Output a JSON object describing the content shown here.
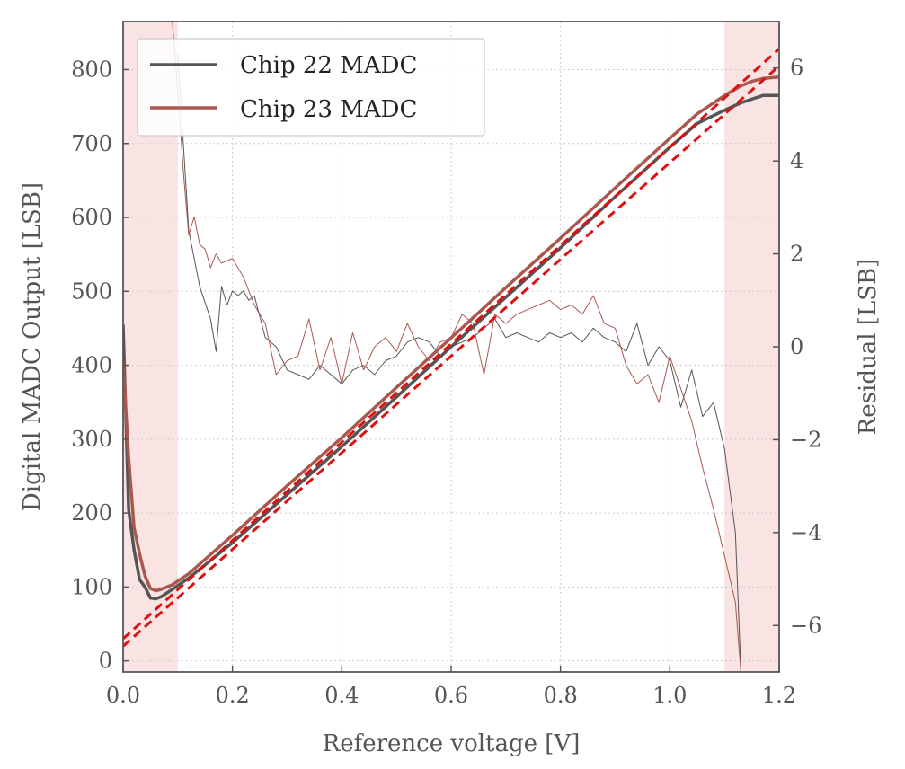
{
  "chart_data": {
    "type": "line",
    "xlabel": "Reference voltage [V]",
    "ylabel": "Digital MADC Output [LSB]",
    "y2label": "Residual [LSB]",
    "xlim": [
      0.0,
      1.2
    ],
    "ylim": [
      -15,
      865
    ],
    "y2lim": [
      -7,
      7
    ],
    "xticks": [
      0.0,
      0.2,
      0.4,
      0.6,
      0.8,
      1.0,
      1.2
    ],
    "xtick_labels": [
      "0.0",
      "0.2",
      "0.4",
      "0.6",
      "0.8",
      "1.0",
      "1.2"
    ],
    "yticks": [
      0,
      100,
      200,
      300,
      400,
      500,
      600,
      700,
      800
    ],
    "ytick_labels": [
      "0",
      "100",
      "200",
      "300",
      "400",
      "500",
      "600",
      "700",
      "800"
    ],
    "y2ticks": [
      -6,
      -4,
      -2,
      0,
      2,
      4,
      6
    ],
    "y2tick_labels": [
      "−6",
      "−4",
      "−2",
      "0",
      "2",
      "4",
      "6"
    ],
    "grid": true,
    "legend_position": "top-left",
    "shaded_regions": [
      {
        "x0": 0.0,
        "x1": 0.1,
        "color": "#f9e3e3"
      },
      {
        "x0": 1.1,
        "x1": 1.2,
        "color": "#f9e3e3"
      }
    ],
    "colors": {
      "chip22": "#555555",
      "chip23": "#a9584e",
      "fit": "#e01010",
      "grid": "#cccccc",
      "axis": "#555555"
    },
    "series": [
      {
        "name": "Chip 22 MADC",
        "axis": "left",
        "x": [
          0.0,
          0.01,
          0.02,
          0.03,
          0.04,
          0.05,
          0.06,
          0.07,
          0.08,
          0.09,
          0.1,
          0.12,
          0.2,
          0.3,
          0.4,
          0.5,
          0.6,
          0.7,
          0.8,
          0.9,
          1.0,
          1.05,
          1.1,
          1.13,
          1.15,
          1.17,
          1.2
        ],
        "y": [
          455,
          205,
          150,
          110,
          100,
          85,
          84,
          87,
          92,
          97,
          102,
          112,
          160,
          225,
          290,
          357,
          425,
          492,
          559,
          628,
          695,
          727,
          745,
          755,
          760,
          765,
          765
        ]
      },
      {
        "name": "Chip 23 MADC",
        "axis": "left",
        "x": [
          0.0,
          0.01,
          0.02,
          0.03,
          0.04,
          0.05,
          0.06,
          0.07,
          0.08,
          0.09,
          0.1,
          0.12,
          0.2,
          0.3,
          0.4,
          0.5,
          0.6,
          0.7,
          0.8,
          0.9,
          1.0,
          1.05,
          1.1,
          1.13,
          1.15,
          1.17,
          1.2
        ],
        "y": [
          405,
          275,
          180,
          145,
          115,
          98,
          95,
          97,
          100,
          103,
          108,
          118,
          170,
          237,
          302,
          370,
          437,
          505,
          572,
          640,
          707,
          740,
          765,
          778,
          784,
          788,
          790
        ]
      },
      {
        "axis": "left",
        "style": "dashed",
        "x": [
          0.0,
          1.2
        ],
        "y": [
          20,
          805
        ]
      },
      {
        "axis": "left",
        "style": "dashed",
        "x": [
          0.0,
          1.2
        ],
        "y": [
          30,
          828
        ]
      },
      {
        "axis": "right",
        "thin": true,
        "x": [
          0.1,
          0.12,
          0.14,
          0.16,
          0.17,
          0.18,
          0.19,
          0.2,
          0.21,
          0.22,
          0.23,
          0.24,
          0.26,
          0.28,
          0.3,
          0.32,
          0.34,
          0.36,
          0.38,
          0.4,
          0.42,
          0.44,
          0.46,
          0.48,
          0.5,
          0.52,
          0.54,
          0.56,
          0.58,
          0.6,
          0.62,
          0.64,
          0.66,
          0.68,
          0.7,
          0.72,
          0.74,
          0.76,
          0.78,
          0.8,
          0.82,
          0.84,
          0.86,
          0.88,
          0.9,
          0.92,
          0.94,
          0.96,
          0.98,
          1.0,
          1.02,
          1.04,
          1.06,
          1.08,
          1.1,
          1.12,
          1.13
        ],
        "y": [
          6.3,
          2.5,
          1.3,
          0.6,
          -0.1,
          1.3,
          0.9,
          1.2,
          1.1,
          1.2,
          1.0,
          1.1,
          0.2,
          0.0,
          -0.5,
          -0.6,
          -0.7,
          -0.4,
          -0.6,
          -0.8,
          -0.5,
          -0.4,
          -0.6,
          -0.3,
          -0.2,
          0.1,
          0.2,
          0.1,
          -0.2,
          0.0,
          0.1,
          0.2,
          0.4,
          0.6,
          0.2,
          0.3,
          0.2,
          0.1,
          0.3,
          0.2,
          0.3,
          0.1,
          0.4,
          0.2,
          0.1,
          -0.1,
          0.5,
          -0.4,
          0.0,
          -0.3,
          -1.3,
          -0.5,
          -1.5,
          -1.2,
          -2.2,
          -4.0,
          -7.0
        ]
      },
      {
        "axis": "right",
        "thin": true,
        "x": [
          0.09,
          0.1,
          0.11,
          0.12,
          0.13,
          0.14,
          0.15,
          0.16,
          0.17,
          0.18,
          0.2,
          0.22,
          0.24,
          0.26,
          0.28,
          0.3,
          0.32,
          0.34,
          0.36,
          0.38,
          0.4,
          0.42,
          0.44,
          0.46,
          0.48,
          0.5,
          0.52,
          0.54,
          0.56,
          0.58,
          0.6,
          0.62,
          0.64,
          0.66,
          0.68,
          0.7,
          0.72,
          0.74,
          0.76,
          0.78,
          0.8,
          0.82,
          0.84,
          0.86,
          0.88,
          0.9,
          0.92,
          0.94,
          0.96,
          0.98,
          1.0,
          1.02,
          1.04,
          1.06,
          1.08,
          1.1,
          1.12,
          1.13
        ],
        "y": [
          7.0,
          5.5,
          3.8,
          2.4,
          2.8,
          2.2,
          2.1,
          1.7,
          2.0,
          1.8,
          1.9,
          1.5,
          0.9,
          0.5,
          -0.6,
          -0.3,
          -0.2,
          0.6,
          -0.5,
          0.2,
          -0.8,
          0.3,
          -0.5,
          0.0,
          0.2,
          -0.1,
          0.5,
          0.0,
          -0.3,
          0.1,
          0.2,
          0.7,
          0.5,
          -0.6,
          0.7,
          0.5,
          0.7,
          0.8,
          0.9,
          1.0,
          0.8,
          0.9,
          0.7,
          1.1,
          0.5,
          0.4,
          -0.4,
          -0.8,
          -0.6,
          -1.2,
          -0.2,
          -0.9,
          -1.6,
          -2.6,
          -3.5,
          -4.5,
          -5.5,
          -7.0
        ]
      }
    ]
  }
}
